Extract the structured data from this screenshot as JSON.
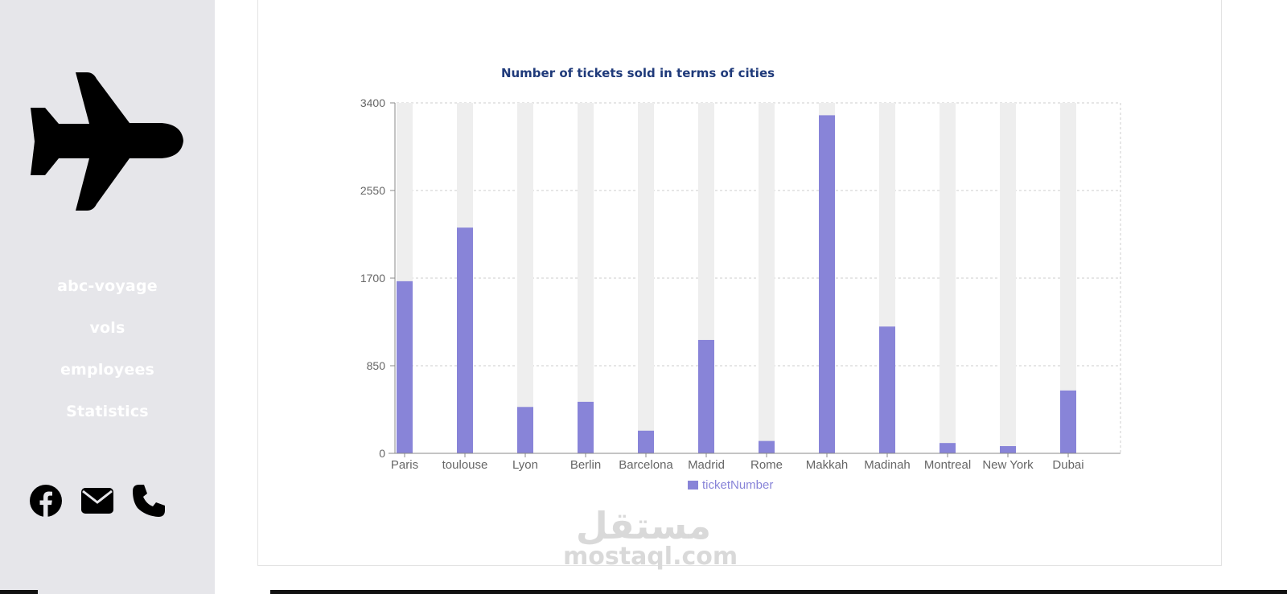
{
  "sidebar": {
    "logo_icon": "airplane-icon",
    "nav": [
      {
        "label": "abc-voyage"
      },
      {
        "label": "vols"
      },
      {
        "label": "employees"
      },
      {
        "label": "Statistics"
      }
    ],
    "socials": [
      {
        "icon": "facebook-icon"
      },
      {
        "icon": "mail-icon"
      },
      {
        "icon": "phone-icon"
      }
    ]
  },
  "watermark": {
    "logo_text": "مستقل",
    "domain": "mostaql.com"
  },
  "colors": {
    "bar": "#8884d8",
    "bar_background": "#eeeeee",
    "title": "#1f3a7a",
    "sidebar_bg": "#e6e6ea"
  },
  "chart_data": {
    "type": "bar",
    "title": "Number of tickets sold in terms of cities",
    "categories": [
      "Paris",
      "toulouse",
      "Lyon",
      "Berlin",
      "Barcelona",
      "Madrid",
      "Rome",
      "Makkah",
      "Madinah",
      "Montreal",
      "New York",
      "Dubai"
    ],
    "series": [
      {
        "name": "ticketNumber",
        "values": [
          1670,
          2190,
          450,
          500,
          220,
          1100,
          120,
          3280,
          1230,
          100,
          70,
          610
        ]
      }
    ],
    "yticks": [
      "0",
      "850",
      "1700",
      "2550",
      "3400"
    ],
    "ylim": [
      0,
      3400
    ],
    "grid": true,
    "legend": "bottom-center"
  }
}
